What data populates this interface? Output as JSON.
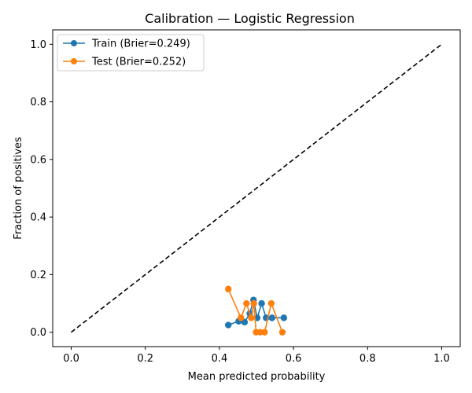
{
  "chart_data": {
    "type": "line",
    "title": "Calibration — Logistic Regression",
    "xlabel": "Mean predicted probability",
    "ylabel": "Fraction of positives",
    "xlim": [
      -0.05,
      1.05
    ],
    "ylim": [
      -0.05,
      1.05
    ],
    "xticks": [
      0.0,
      0.2,
      0.4,
      0.6,
      0.8,
      1.0
    ],
    "yticks": [
      0.0,
      0.2,
      0.4,
      0.6,
      0.8,
      1.0
    ],
    "xtick_labels": [
      "0.0",
      "0.2",
      "0.4",
      "0.6",
      "0.8",
      "1.0"
    ],
    "ytick_labels": [
      "0.0",
      "0.2",
      "0.4",
      "0.6",
      "0.8",
      "1.0"
    ],
    "grid": false,
    "legend_position": "top-left",
    "reference_line": {
      "style": "dashed",
      "color": "#000000",
      "x": [
        0.0,
        1.0
      ],
      "y": [
        0.0,
        1.0
      ]
    },
    "series": [
      {
        "name": "Train (Brier=0.249)",
        "color": "#1f77b4",
        "marker": "circle",
        "x": [
          0.424,
          0.452,
          0.468,
          0.482,
          0.492,
          0.502,
          0.514,
          0.526,
          0.542,
          0.574
        ],
        "y": [
          0.025,
          0.038,
          0.035,
          0.065,
          0.112,
          0.05,
          0.1,
          0.05,
          0.05,
          0.05
        ]
      },
      {
        "name": "Test (Brier=0.252)",
        "color": "#ff7f0e",
        "marker": "circle",
        "x": [
          0.424,
          0.458,
          0.473,
          0.486,
          0.493,
          0.499,
          0.51,
          0.522,
          0.54,
          0.57
        ],
        "y": [
          0.15,
          0.05,
          0.1,
          0.05,
          0.1,
          0.0,
          0.0,
          0.0,
          0.1,
          0.0
        ]
      }
    ]
  }
}
